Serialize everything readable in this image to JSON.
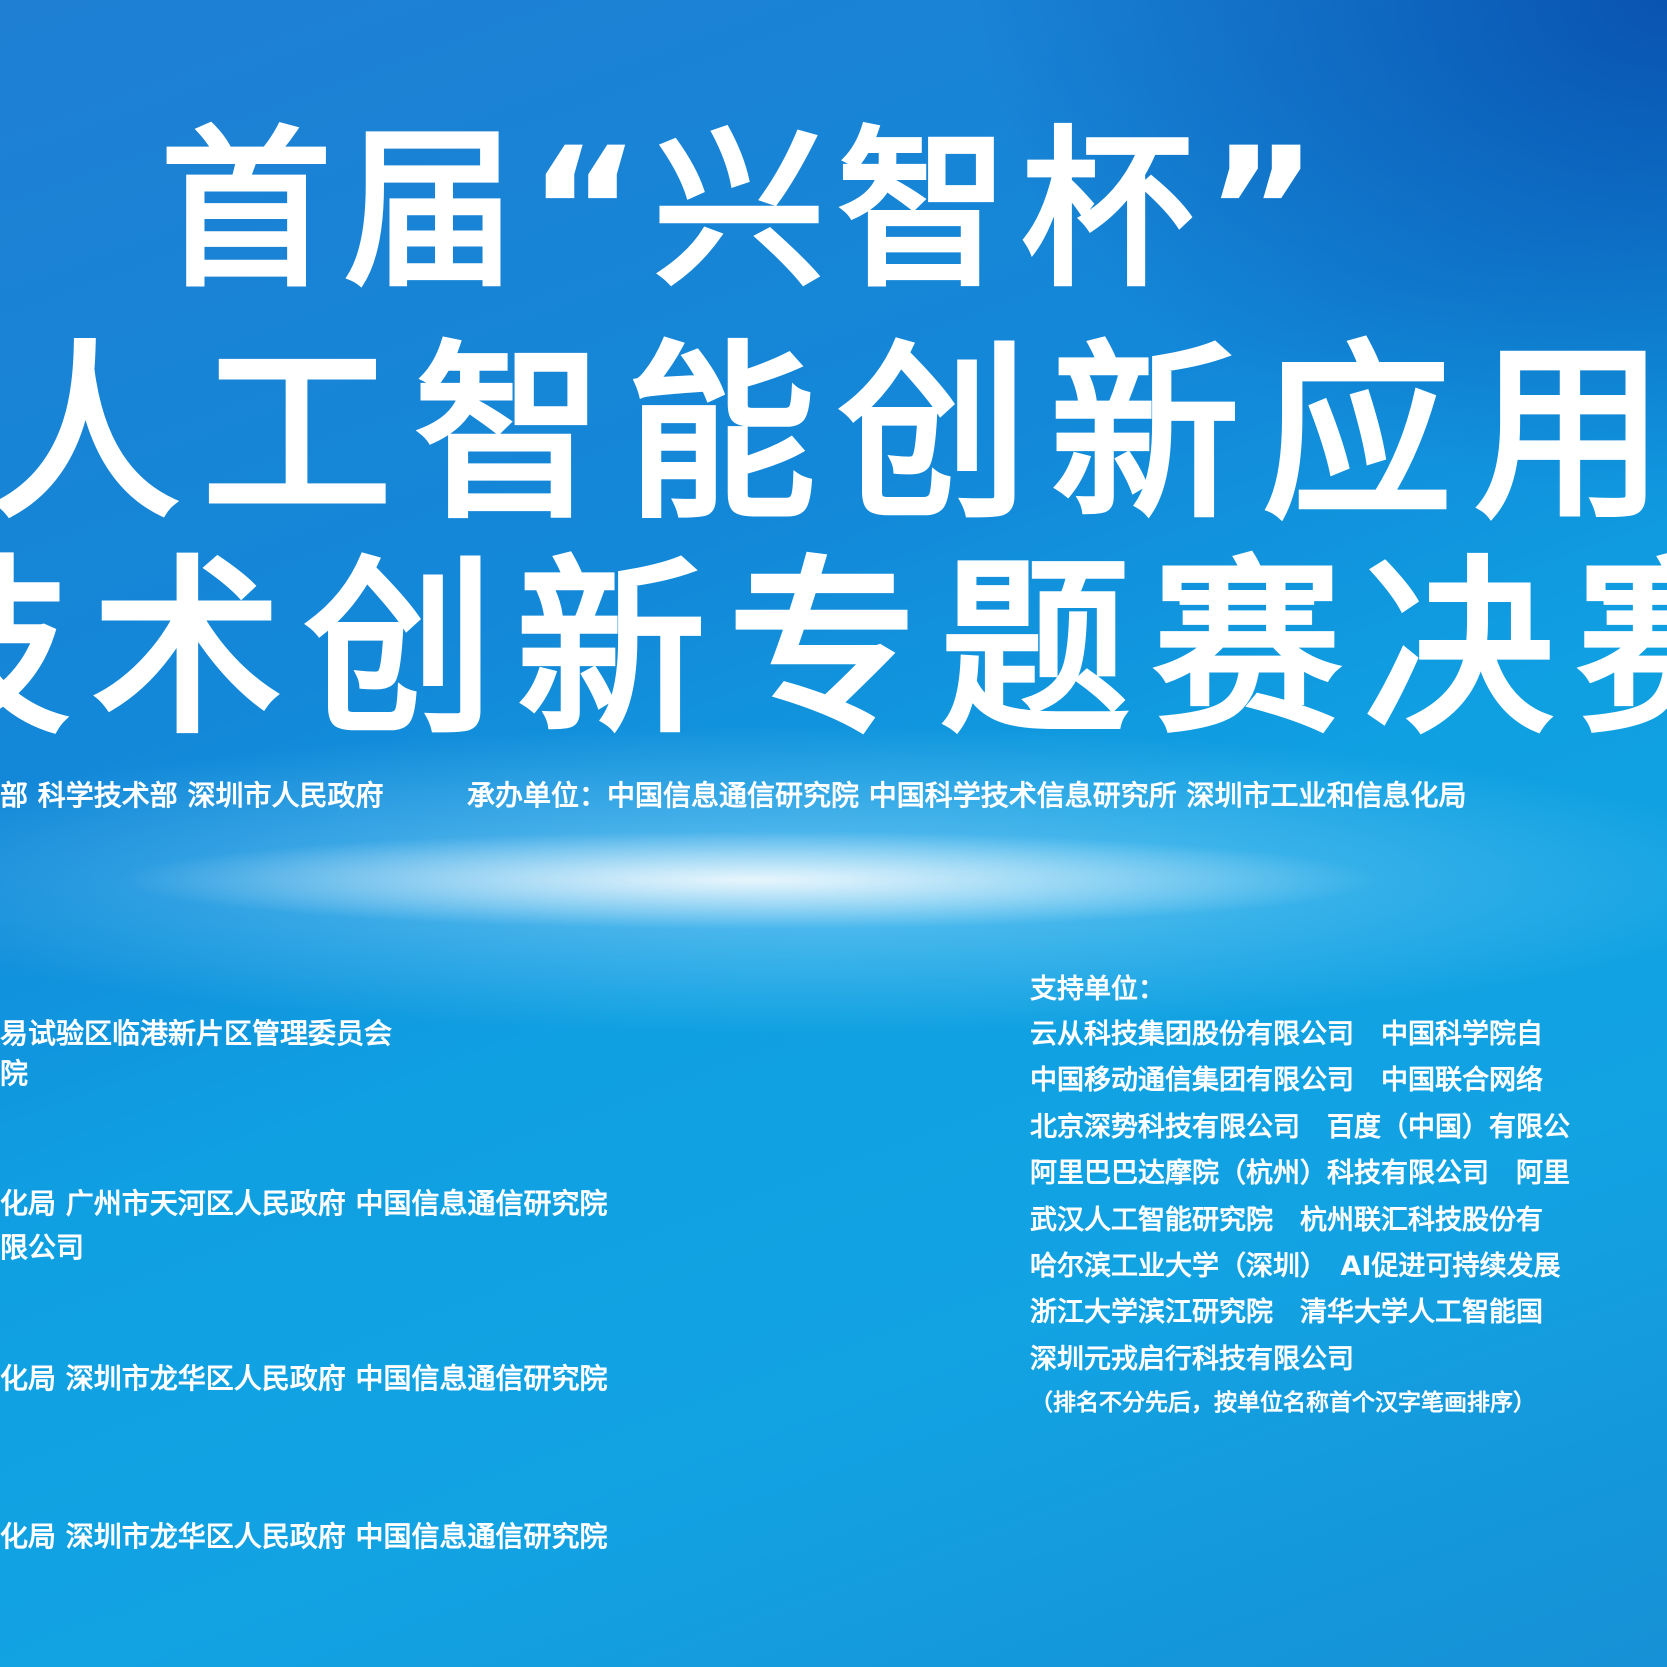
{
  "title": {
    "lines": [
      "首届“兴智杯”",
      "人工智能创新应用",
      "技术创新专题赛决赛"
    ]
  },
  "organizers": {
    "host": "部 科学技术部 深圳市人民政府",
    "co_organizer": "承办单位：中国信息通信研究院 中国科学技术信息研究所 深圳市工业和信息化局"
  },
  "left_block": {
    "lines": [
      "易试验区临港新片区管理委员会",
      "院",
      "化局  广州市天河区人民政府  中国信息通信研究院",
      "限公司",
      "化局  深圳市龙华区人民政府  中国信息通信研究院",
      "化局  深圳市龙华区人民政府  中国信息通信研究院"
    ]
  },
  "support": {
    "heading": "支持单位：",
    "lines": [
      "云从科技集团股份有限公司　中国科学院自",
      "中国移动通信集团有限公司　中国联合网络",
      "北京深势科技有限公司　百度（中国）有限公",
      "阿里巴巴达摩院（杭州）科技有限公司　阿里",
      "武汉人工智能研究院　杭州联汇科技股份有",
      "哈尔滨工业大学（深圳）　AI促进可持续发展",
      "浙江大学滨江研究院　清华大学人工智能国",
      "深圳元戎启行科技有限公司"
    ],
    "note": "（排名不分先后，按单位名称首个汉字笔画排序）"
  }
}
